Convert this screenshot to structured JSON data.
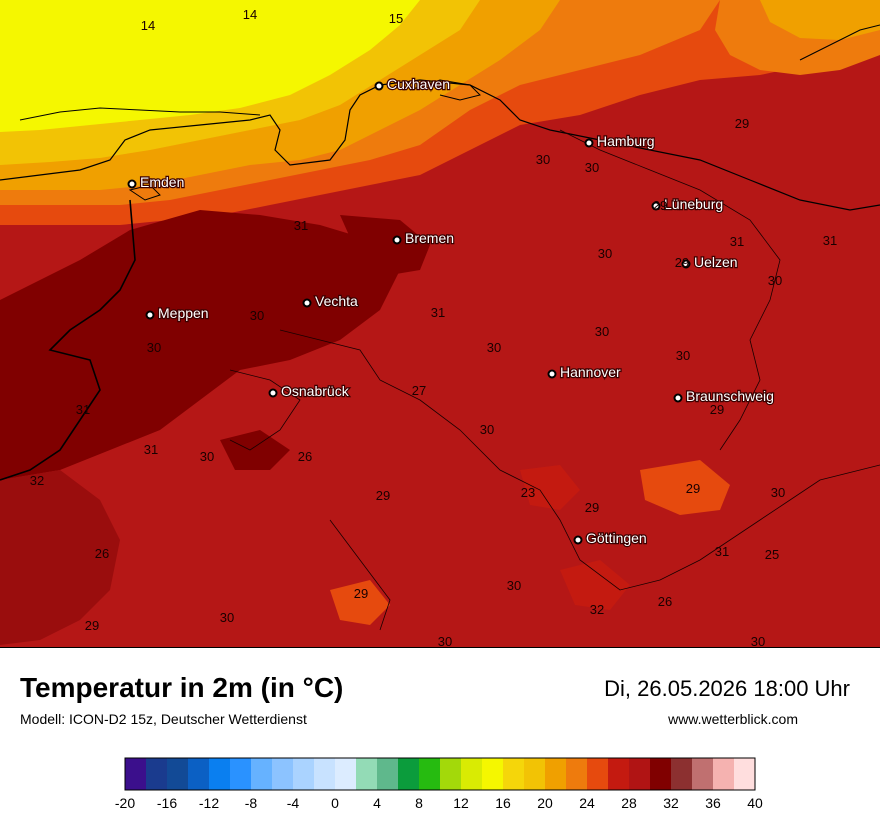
{
  "header": {
    "title": "Temperatur in 2m (in °C)",
    "model": "Modell: ICON-D2 15z, Deutscher Wetterdienst",
    "datetime": "Di, 26.05.2026 18:00 Uhr",
    "website": "www.wetterblick.com"
  },
  "cities": [
    {
      "name": "Cuxhaven",
      "value": ""
    },
    {
      "name": "Hamburg",
      "value": ""
    },
    {
      "name": "Emden",
      "value": ""
    },
    {
      "name": "Lüneburg",
      "value": ""
    },
    {
      "name": "Bremen",
      "value": ""
    },
    {
      "name": "Uelzen",
      "value": ""
    },
    {
      "name": "Vechta",
      "value": ""
    },
    {
      "name": "Meppen",
      "value": ""
    },
    {
      "name": "Hannover",
      "value": ""
    },
    {
      "name": "Osnabrück",
      "value": ""
    },
    {
      "name": "Braunschweig",
      "value": ""
    },
    {
      "name": "Göttingen",
      "value": ""
    }
  ],
  "values": [
    "14",
    "14",
    "15",
    "29",
    "30",
    "30",
    "31",
    "29",
    "30",
    "31",
    "31",
    "29",
    "30",
    "30",
    "31",
    "30",
    "30",
    "30",
    "30",
    "27",
    "31",
    "29",
    "30",
    "31",
    "30",
    "26",
    "23",
    "29",
    "30",
    "32",
    "29",
    "29",
    "26",
    "31",
    "25",
    "30",
    "29",
    "32",
    "26",
    "29",
    "30",
    "30",
    "30"
  ],
  "legend": {
    "ticks": [
      "-20",
      "-16",
      "-12",
      "-8",
      "-4",
      "0",
      "4",
      "8",
      "12",
      "16",
      "20",
      "24",
      "28",
      "32",
      "36",
      "40"
    ],
    "colors": [
      "#3b0f8c",
      "#1a3b8e",
      "#124a96",
      "#0b60c4",
      "#0a7ff0",
      "#2a92ff",
      "#66b2ff",
      "#8cc3ff",
      "#aad3ff",
      "#c8e2ff",
      "#dcecff",
      "#93dbb6",
      "#5fb88c",
      "#0b9c3c",
      "#26bb10",
      "#a3d90a",
      "#d9eb03",
      "#f5f700",
      "#f5d60a",
      "#f2c305",
      "#f0a000",
      "#ee7b0d",
      "#e64a0e",
      "#c41a10",
      "#b01414",
      "#800000",
      "#8c3030",
      "#c07070",
      "#f5b2b0",
      "#ffdede"
    ]
  }
}
